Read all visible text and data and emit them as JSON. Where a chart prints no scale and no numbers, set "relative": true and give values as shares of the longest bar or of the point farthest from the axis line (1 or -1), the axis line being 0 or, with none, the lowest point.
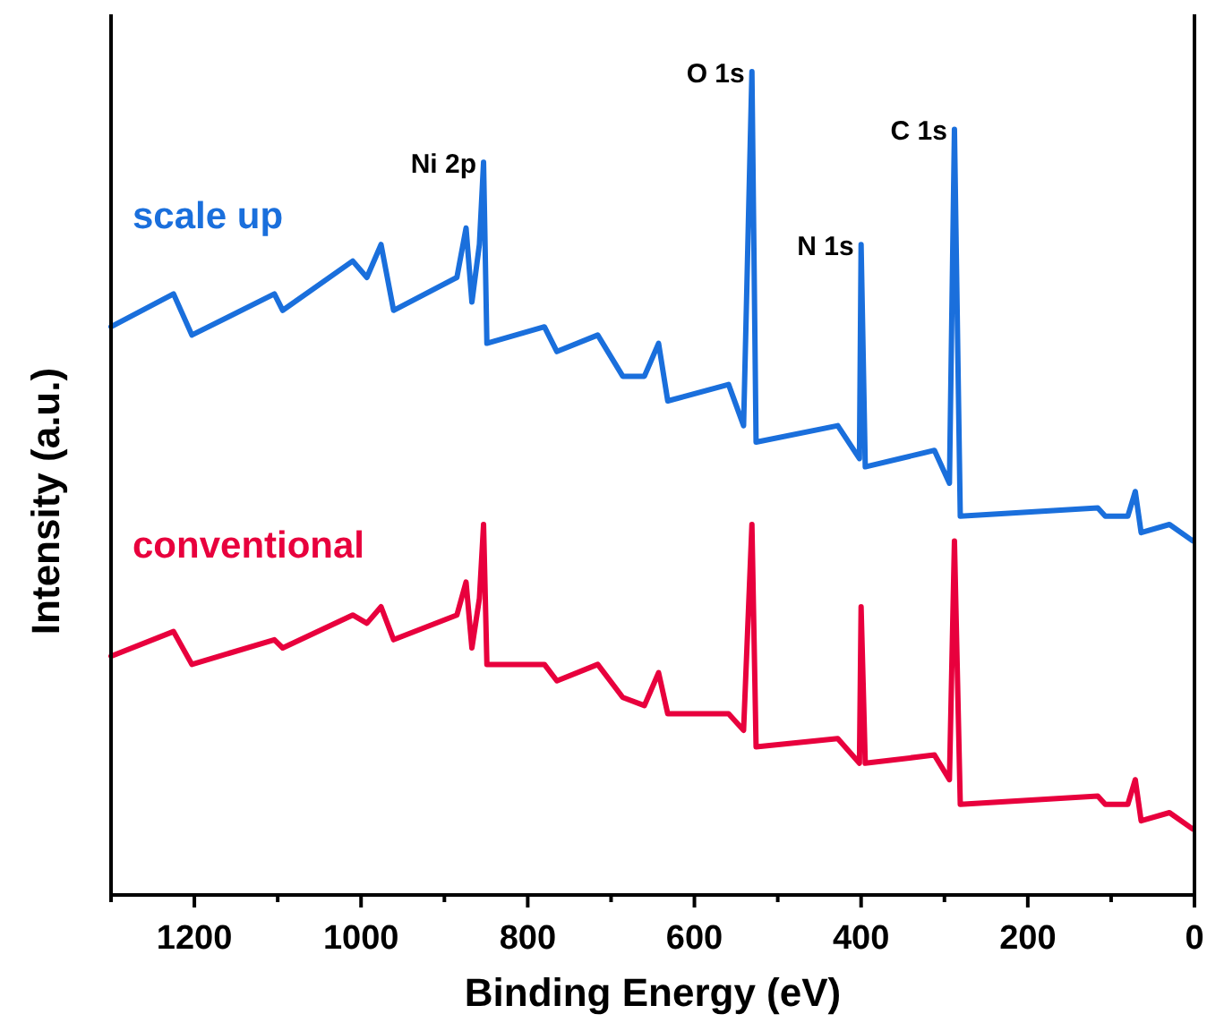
{
  "chart_data": {
    "type": "line",
    "relative": true,
    "xlabel": "Binding Energy (eV)",
    "ylabel": "Intensity (a.u.)",
    "xlim": [
      1300,
      0
    ],
    "xticks": [
      {
        "value": 1300,
        "label": null
      },
      1200,
      {
        "value": 1100,
        "label": null
      },
      1000,
      {
        "value": 900,
        "label": null
      },
      800,
      {
        "value": 700,
        "label": null
      },
      600,
      {
        "value": 500,
        "label": null
      },
      400,
      {
        "value": 300,
        "label": null
      },
      200,
      {
        "value": 100,
        "label": null
      },
      0
    ],
    "x": [
      1300,
      1225,
      1203,
      1104,
      1094,
      1010,
      993,
      976,
      961,
      885,
      874,
      867,
      858,
      853,
      849,
      780,
      765,
      716,
      686,
      660,
      643,
      632,
      559,
      541,
      531,
      526,
      428,
      402,
      400,
      395,
      312,
      294,
      288,
      281,
      116,
      107,
      80,
      71,
      64,
      30,
      2
    ],
    "series": [
      {
        "name": "scale up",
        "color": "#1a6fdc",
        "values": [
          0.69,
          0.73,
          0.68,
          0.73,
          0.71,
          0.77,
          0.75,
          0.79,
          0.71,
          0.75,
          0.81,
          0.72,
          0.79,
          0.89,
          0.67,
          0.69,
          0.66,
          0.68,
          0.63,
          0.63,
          0.67,
          0.6,
          0.62,
          0.57,
          1.0,
          0.55,
          0.57,
          0.53,
          0.79,
          0.52,
          0.54,
          0.5,
          0.93,
          0.46,
          0.47,
          0.46,
          0.46,
          0.49,
          0.44,
          0.45,
          0.43
        ]
      },
      {
        "name": "conventional",
        "color": "#e8003d",
        "values": [
          0.29,
          0.32,
          0.28,
          0.31,
          0.3,
          0.34,
          0.33,
          0.35,
          0.31,
          0.34,
          0.38,
          0.3,
          0.36,
          0.45,
          0.28,
          0.28,
          0.26,
          0.28,
          0.24,
          0.23,
          0.27,
          0.22,
          0.22,
          0.2,
          0.45,
          0.18,
          0.19,
          0.16,
          0.35,
          0.16,
          0.17,
          0.14,
          0.43,
          0.11,
          0.12,
          0.11,
          0.11,
          0.14,
          0.09,
          0.1,
          0.08
        ]
      }
    ],
    "annotations": [
      {
        "text": "Ni 2p",
        "x": 853,
        "y": 0.89
      },
      {
        "text": "O 1s",
        "x": 531,
        "y": 1.0
      },
      {
        "text": "N 1s",
        "x": 400,
        "y": 0.79
      },
      {
        "text": "C 1s",
        "x": 288,
        "y": 0.93
      }
    ],
    "legend": false
  }
}
